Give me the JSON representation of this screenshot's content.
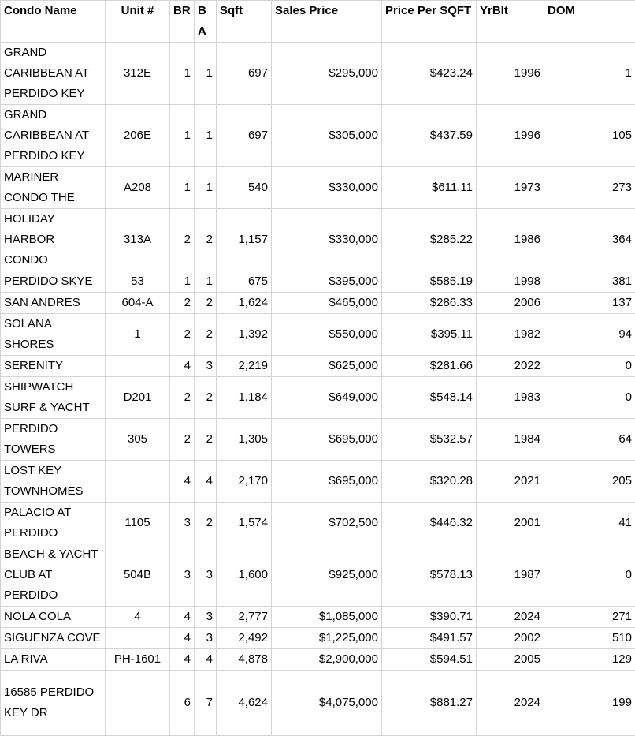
{
  "colors": {
    "grid_border": "#d4d4d4",
    "background": "#ffffff",
    "text": "#000000"
  },
  "table": {
    "columns": [
      {
        "key": "condo_name",
        "label": "Condo Name"
      },
      {
        "key": "unit",
        "label": "Unit #"
      },
      {
        "key": "br",
        "label": "BR"
      },
      {
        "key": "ba",
        "label": "BA"
      },
      {
        "key": "sqft",
        "label": "Sqft"
      },
      {
        "key": "sales_price",
        "label": "Sales Price"
      },
      {
        "key": "price_per_sqft",
        "label": "Price Per SQFT"
      },
      {
        "key": "yr_blt",
        "label": "YrBlt"
      },
      {
        "key": "dom",
        "label": "DOM"
      }
    ],
    "rows": [
      {
        "condo_name": "GRAND CARIBBEAN AT PERDIDO KEY",
        "unit": "312E",
        "br": "1",
        "ba": "1",
        "sqft": "697",
        "sales_price": "$295,000",
        "price_per_sqft": "$423.24",
        "yr_blt": "1996",
        "dom": "1"
      },
      {
        "condo_name": "GRAND CARIBBEAN AT PERDIDO KEY",
        "unit": "206E",
        "br": "1",
        "ba": "1",
        "sqft": "697",
        "sales_price": "$305,000",
        "price_per_sqft": "$437.59",
        "yr_blt": "1996",
        "dom": "105"
      },
      {
        "condo_name": "MARINER CONDO THE",
        "unit": "A208",
        "br": "1",
        "ba": "1",
        "sqft": "540",
        "sales_price": "$330,000",
        "price_per_sqft": "$611.11",
        "yr_blt": "1973",
        "dom": "273"
      },
      {
        "condo_name": "HOLIDAY HARBOR CONDO",
        "unit": "313A",
        "br": "2",
        "ba": "2",
        "sqft": "1,157",
        "sales_price": "$330,000",
        "price_per_sqft": "$285.22",
        "yr_blt": "1986",
        "dom": "364"
      },
      {
        "condo_name": "PERDIDO SKYE",
        "unit": "53",
        "br": "1",
        "ba": "1",
        "sqft": "675",
        "sales_price": "$395,000",
        "price_per_sqft": "$585.19",
        "yr_blt": "1998",
        "dom": "381"
      },
      {
        "condo_name": "SAN ANDRES",
        "unit": "604-A",
        "br": "2",
        "ba": "2",
        "sqft": "1,624",
        "sales_price": "$465,000",
        "price_per_sqft": "$286.33",
        "yr_blt": "2006",
        "dom": "137"
      },
      {
        "condo_name": "SOLANA SHORES",
        "unit": "1",
        "br": "2",
        "ba": "2",
        "sqft": "1,392",
        "sales_price": "$550,000",
        "price_per_sqft": "$395.11",
        "yr_blt": "1982",
        "dom": "94"
      },
      {
        "condo_name": "SERENITY",
        "unit": "",
        "br": "4",
        "ba": "3",
        "sqft": "2,219",
        "sales_price": "$625,000",
        "price_per_sqft": "$281.66",
        "yr_blt": "2022",
        "dom": "0"
      },
      {
        "condo_name": "SHIPWATCH SURF & YACHT",
        "unit": "D201",
        "br": "2",
        "ba": "2",
        "sqft": "1,184",
        "sales_price": "$649,000",
        "price_per_sqft": "$548.14",
        "yr_blt": "1983",
        "dom": "0"
      },
      {
        "condo_name": "PERDIDO TOWERS",
        "unit": "305",
        "br": "2",
        "ba": "2",
        "sqft": "1,305",
        "sales_price": "$695,000",
        "price_per_sqft": "$532.57",
        "yr_blt": "1984",
        "dom": "64"
      },
      {
        "condo_name": "LOST KEY TOWNHOMES",
        "unit": "",
        "br": "4",
        "ba": "4",
        "sqft": "2,170",
        "sales_price": "$695,000",
        "price_per_sqft": "$320.28",
        "yr_blt": "2021",
        "dom": "205"
      },
      {
        "condo_name": "PALACIO AT PERDIDO",
        "unit": "1105",
        "br": "3",
        "ba": "2",
        "sqft": "1,574",
        "sales_price": "$702,500",
        "price_per_sqft": "$446.32",
        "yr_blt": "2001",
        "dom": "41"
      },
      {
        "condo_name": "BEACH & YACHT CLUB AT PERDIDO",
        "unit": "504B",
        "br": "3",
        "ba": "3",
        "sqft": "1,600",
        "sales_price": "$925,000",
        "price_per_sqft": "$578.13",
        "yr_blt": "1987",
        "dom": "0"
      },
      {
        "condo_name": "NOLA COLA",
        "unit": "4",
        "br": "4",
        "ba": "3",
        "sqft": "2,777",
        "sales_price": "$1,085,000",
        "price_per_sqft": "$390.71",
        "yr_blt": "2024",
        "dom": "271"
      },
      {
        "condo_name": "SIGUENZA COVE",
        "unit": "",
        "br": "4",
        "ba": "3",
        "sqft": "2,492",
        "sales_price": "$1,225,000",
        "price_per_sqft": "$491.57",
        "yr_blt": "2002",
        "dom": "510"
      },
      {
        "condo_name": "LA RIVA",
        "unit": "PH-1601",
        "br": "4",
        "ba": "4",
        "sqft": "4,878",
        "sales_price": "$2,900,000",
        "price_per_sqft": "$594.51",
        "yr_blt": "2005",
        "dom": "129"
      },
      {
        "condo_name": "16585 PERDIDO KEY DR",
        "unit": "",
        "br": "6",
        "ba": "7",
        "sqft": "4,624",
        "sales_price": "$4,075,000",
        "price_per_sqft": "$881.27",
        "yr_blt": "2024",
        "dom": "199"
      }
    ]
  }
}
